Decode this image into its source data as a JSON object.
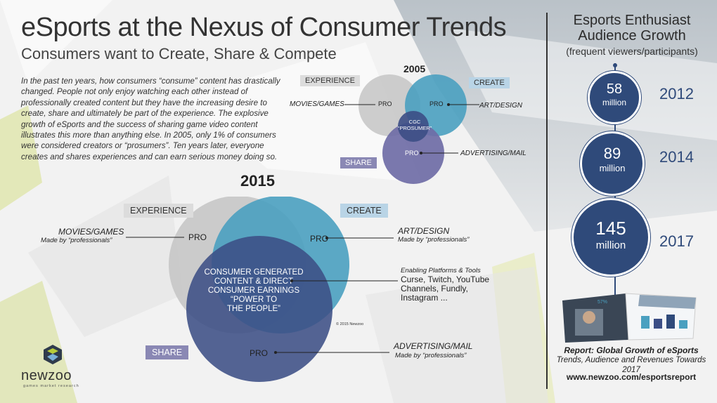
{
  "title": "eSports at the Nexus of Consumer Trends",
  "subtitle": "Consumers want to Create, Share & Compete",
  "intro": "In the past ten years, how consumers “consume” content has drastically changed. People not only enjoy watching each other instead of professionally created content but they have the increasing desire to create, share and ultimately be part of the experience. The explosive growth of eSports and the success of sharing game video content illustrates this more than anything else. In 2005, only 1% of consumers were considered creators or “prosumers”. Ten years later, everyone creates and shares experiences and can earn serious money doing so.",
  "venn2005": {
    "year": "2005",
    "experience": "EXPERIENCE",
    "create": "CREATE",
    "share": "SHARE",
    "pro": "PRO",
    "center": "CGC\n“PROSUMER”",
    "movies": "MOVIES/GAMES",
    "art": "ART/DESIGN",
    "advertising": "ADVERTISING/MAIL"
  },
  "venn2015": {
    "year": "2015",
    "experience": "EXPERIENCE",
    "create": "CREATE",
    "share": "SHARE",
    "pro": "PRO",
    "center": "CONSUMER GENERATED\nCONTENT & DIRECT\nCONSUMER EARNINGS\n“POWER TO\nTHE PEOPLE”",
    "movies": "MOVIES/GAMES",
    "art": "ART/DESIGN",
    "advertising": "ADVERTISING/MAIL",
    "made_by": "Made by “professionals”",
    "platforms_title": "Enabling Platforms & Tools",
    "platforms": "Curse, Twitch, YouTube\nChannels, Fundly,\nInstagram ...",
    "copyright": "© 2015 Newzoo"
  },
  "growth": {
    "title": "Esports Enthusiast\nAudience Growth",
    "subtitle": "(frequent viewers/participants)",
    "points": [
      {
        "value": "58",
        "unit": "million",
        "year": "2012"
      },
      {
        "value": "89",
        "unit": "million",
        "year": "2014"
      },
      {
        "value": "145",
        "unit": "million",
        "year": "2017"
      }
    ]
  },
  "report": {
    "line1": "Report: Global Growth of eSports",
    "line2": "Trends, Audience and Revenues Towards 2017",
    "url": "www.newzoo.com/esportsreport",
    "thumb_stat": "57%"
  },
  "logo": {
    "name": "newzoo",
    "tagline": "games market research"
  },
  "colors": {
    "grey_circle": "#c8c8c8",
    "teal_circle": "#4aa0c0",
    "navy_circle": "#3c4e85",
    "purple_circle": "#6f6ca6",
    "growth_circle": "#2f4a7a"
  }
}
